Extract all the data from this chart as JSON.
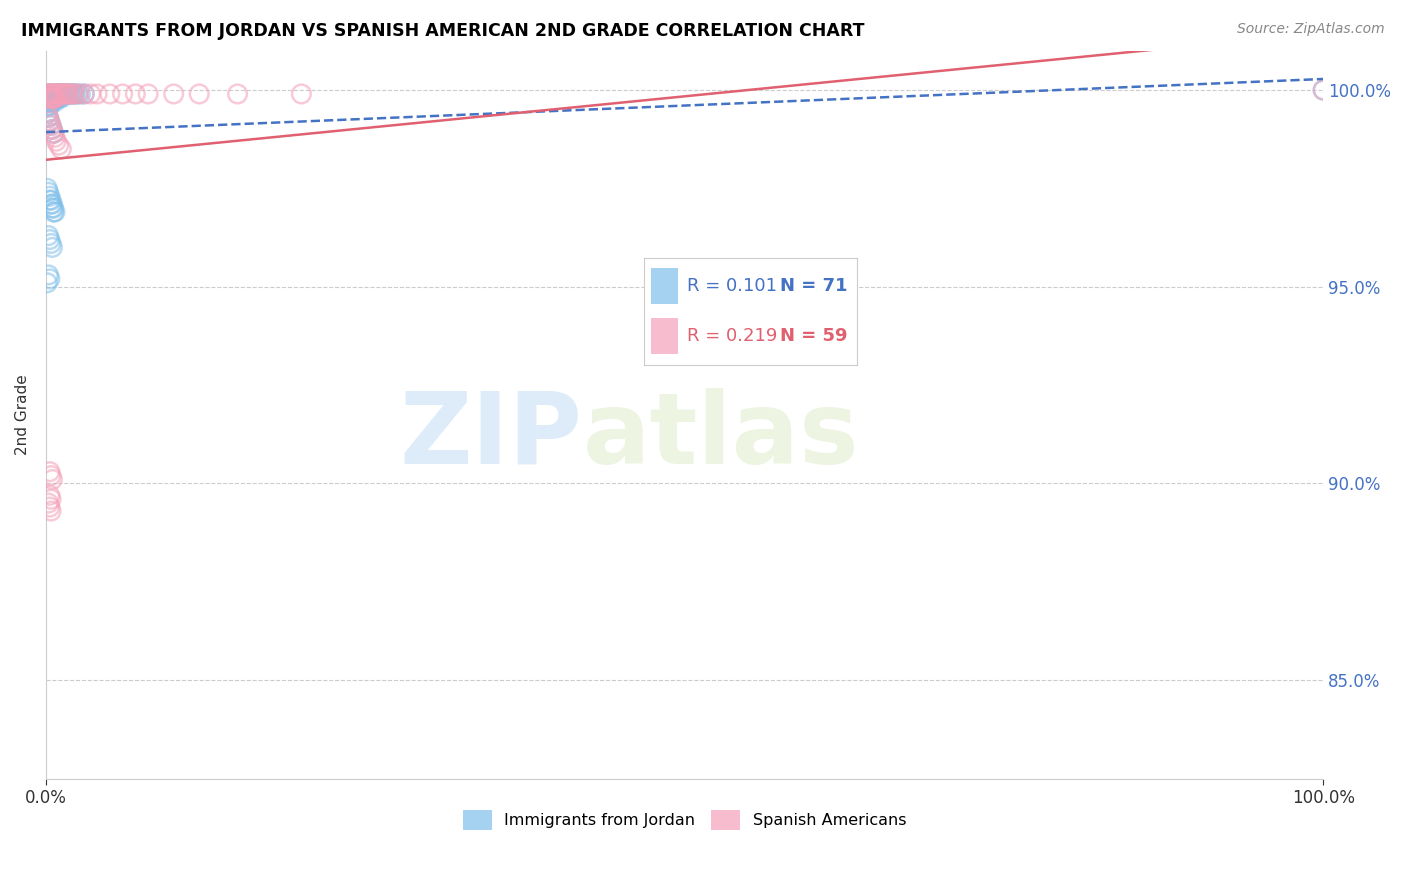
{
  "title": "IMMIGRANTS FROM JORDAN VS SPANISH AMERICAN 2ND GRADE CORRELATION CHART",
  "source": "Source: ZipAtlas.com",
  "ylabel": "2nd Grade",
  "legend_blue_label": "Immigrants from Jordan",
  "legend_pink_label": "Spanish Americans",
  "R_blue": 0.101,
  "N_blue": 71,
  "R_pink": 0.219,
  "N_pink": 59,
  "blue_color": "#7fbfea",
  "pink_color": "#f4a0b8",
  "trendline_blue_color": "#4472c4",
  "trendline_pink_color": "#e06070",
  "right_axis_color": "#4472c4",
  "watermark_zip": "ZIP",
  "watermark_atlas": "atlas",
  "blue_scatter_x": [
    0.001,
    0.001,
    0.001,
    0.002,
    0.002,
    0.002,
    0.002,
    0.003,
    0.003,
    0.003,
    0.003,
    0.004,
    0.004,
    0.004,
    0.005,
    0.005,
    0.005,
    0.006,
    0.006,
    0.007,
    0.007,
    0.007,
    0.008,
    0.008,
    0.009,
    0.009,
    0.01,
    0.01,
    0.011,
    0.011,
    0.012,
    0.012,
    0.013,
    0.014,
    0.015,
    0.016,
    0.017,
    0.018,
    0.019,
    0.02,
    0.021,
    0.022,
    0.023,
    0.025,
    0.027,
    0.03,
    0.001,
    0.002,
    0.003,
    0.004,
    0.005,
    0.006,
    0.003,
    0.004,
    0.005,
    0.006,
    0.002,
    0.003,
    0.004,
    0.005,
    0.002,
    0.003,
    0.001,
    0.001,
    0.002,
    0.003,
    0.004,
    0.005,
    0.006,
    0.007,
    1.0
  ],
  "blue_scatter_y": [
    0.999,
    0.998,
    0.997,
    0.999,
    0.998,
    0.997,
    0.996,
    0.999,
    0.998,
    0.997,
    0.996,
    0.999,
    0.998,
    0.997,
    0.999,
    0.998,
    0.997,
    0.999,
    0.998,
    0.999,
    0.998,
    0.997,
    0.999,
    0.998,
    0.999,
    0.998,
    0.999,
    0.998,
    0.999,
    0.998,
    0.999,
    0.998,
    0.999,
    0.999,
    0.999,
    0.999,
    0.999,
    0.999,
    0.999,
    0.999,
    0.999,
    0.999,
    0.999,
    0.999,
    0.999,
    0.999,
    0.994,
    0.993,
    0.992,
    0.991,
    0.99,
    0.989,
    0.972,
    0.971,
    0.97,
    0.969,
    0.963,
    0.962,
    0.961,
    0.96,
    0.953,
    0.952,
    0.951,
    0.975,
    0.974,
    0.973,
    0.972,
    0.971,
    0.97,
    0.969,
    1.0
  ],
  "pink_scatter_x": [
    0.001,
    0.001,
    0.002,
    0.002,
    0.003,
    0.003,
    0.004,
    0.004,
    0.005,
    0.005,
    0.006,
    0.006,
    0.007,
    0.007,
    0.008,
    0.008,
    0.009,
    0.01,
    0.011,
    0.012,
    0.013,
    0.014,
    0.015,
    0.016,
    0.017,
    0.018,
    0.02,
    0.022,
    0.025,
    0.03,
    0.035,
    0.04,
    0.05,
    0.06,
    0.07,
    0.08,
    0.1,
    0.12,
    0.15,
    0.2,
    0.001,
    0.002,
    0.003,
    0.004,
    0.005,
    0.006,
    0.007,
    0.008,
    0.01,
    0.012,
    0.003,
    0.004,
    0.005,
    0.003,
    0.004,
    0.002,
    0.003,
    0.004,
    1.0
  ],
  "pink_scatter_y": [
    0.999,
    0.998,
    0.999,
    0.998,
    0.999,
    0.998,
    0.999,
    0.998,
    0.999,
    0.998,
    0.999,
    0.998,
    0.999,
    0.998,
    0.999,
    0.998,
    0.999,
    0.999,
    0.999,
    0.999,
    0.999,
    0.999,
    0.999,
    0.999,
    0.999,
    0.999,
    0.999,
    0.999,
    0.999,
    0.999,
    0.999,
    0.999,
    0.999,
    0.999,
    0.999,
    0.999,
    0.999,
    0.999,
    0.999,
    0.999,
    0.994,
    0.993,
    0.992,
    0.991,
    0.99,
    0.989,
    0.988,
    0.987,
    0.986,
    0.985,
    0.903,
    0.902,
    0.901,
    0.897,
    0.896,
    0.895,
    0.894,
    0.893,
    1.0
  ],
  "xlim": [
    0.0,
    1.0
  ],
  "ylim": [
    0.825,
    1.01
  ],
  "y_ticks": [
    0.85,
    0.9,
    0.95,
    1.0
  ],
  "y_tick_labels": [
    "85.0%",
    "90.0%",
    "95.0%",
    "100.0%"
  ],
  "x_ticks": [
    0.0,
    1.0
  ],
  "x_tick_labels": [
    "0.0%",
    "100.0%"
  ],
  "background_color": "#ffffff"
}
